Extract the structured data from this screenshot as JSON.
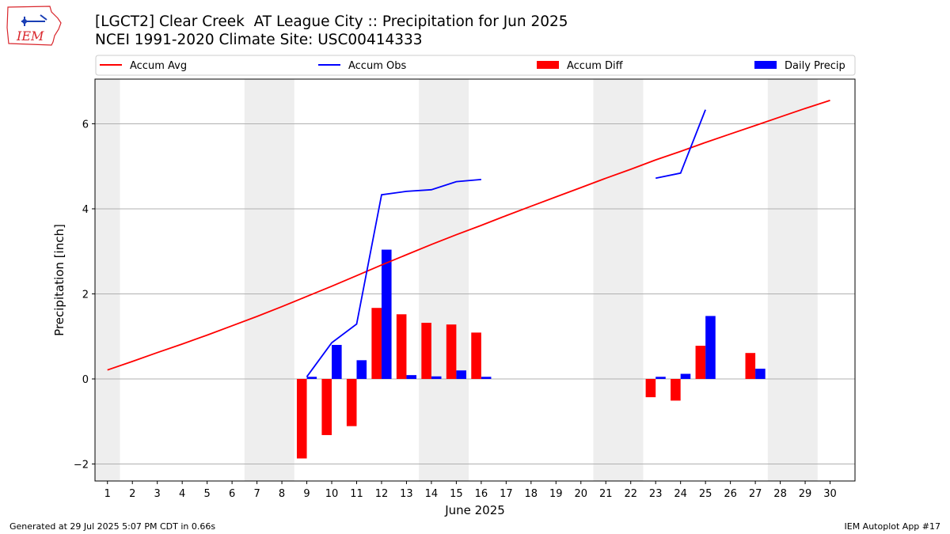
{
  "header": {
    "title": "[LGCT2] Clear Creek  AT League City :: Precipitation for Jun 2025",
    "subtitle": "NCEI 1991-2020 Climate Site: USC00414333"
  },
  "logo": {
    "text": "IEM",
    "color": "#d9262c"
  },
  "footer": {
    "left": "Generated at 29 Jul 2025 5:07 PM CDT in 0.66s",
    "right": "IEM Autoplot App #17"
  },
  "chart_data": {
    "type": "bar",
    "xlabel": "June 2025",
    "ylabel": "Precipitation [inch]",
    "xlim": [
      0.5,
      31
    ],
    "ylim": [
      -2.4,
      7.05
    ],
    "x": [
      1,
      2,
      3,
      4,
      5,
      6,
      7,
      8,
      9,
      10,
      11,
      12,
      13,
      14,
      15,
      16,
      17,
      18,
      19,
      20,
      21,
      22,
      23,
      24,
      25,
      26,
      27,
      28,
      29,
      30
    ],
    "x_tick_labels": [
      "1",
      "2",
      "3",
      "4",
      "5",
      "6",
      "7",
      "8",
      "9",
      "10",
      "11",
      "12",
      "13",
      "14",
      "15",
      "16",
      "17",
      "18",
      "19",
      "20",
      "21",
      "22",
      "23",
      "24",
      "25",
      "26",
      "27",
      "28",
      "29",
      "30"
    ],
    "y_ticks": [
      -2,
      0,
      2,
      4,
      6
    ],
    "y_tick_labels": [
      "−2",
      "0",
      "2",
      "4",
      "6"
    ],
    "grid": "horizontal",
    "legend_placement": "top",
    "weekend_shading": [
      [
        0.5,
        1.5
      ],
      [
        6.5,
        8.5
      ],
      [
        13.5,
        15.5
      ],
      [
        20.5,
        22.5
      ],
      [
        27.5,
        29.5
      ]
    ],
    "shading_color": "#eeeeee",
    "series": [
      {
        "name": "Accum Avg",
        "kind": "line",
        "color": "#ff0000",
        "values": [
          0.21,
          0.41,
          0.62,
          0.82,
          1.03,
          1.25,
          1.47,
          1.7,
          1.94,
          2.18,
          2.43,
          2.68,
          2.92,
          3.16,
          3.39,
          3.61,
          3.84,
          4.06,
          4.28,
          4.5,
          4.72,
          4.93,
          5.15,
          5.35,
          5.56,
          5.76,
          5.96,
          6.16,
          6.36,
          6.55
        ]
      },
      {
        "name": "Accum Obs",
        "kind": "line",
        "color": "#0000ff",
        "values": [
          null,
          null,
          null,
          null,
          null,
          null,
          null,
          null,
          0.05,
          0.85,
          1.29,
          4.33,
          4.41,
          4.45,
          4.64,
          4.69,
          null,
          null,
          null,
          null,
          null,
          null,
          4.72,
          4.84,
          6.33,
          null,
          null,
          null,
          null,
          null
        ]
      },
      {
        "name": "Accum Diff",
        "kind": "bar",
        "color": "#ff0000",
        "values": [
          null,
          null,
          null,
          null,
          null,
          null,
          null,
          null,
          -1.87,
          -1.32,
          -1.11,
          1.67,
          1.52,
          1.32,
          1.28,
          1.09,
          null,
          null,
          null,
          null,
          null,
          null,
          -0.43,
          -0.51,
          0.78,
          null,
          0.61,
          null,
          null,
          null
        ]
      },
      {
        "name": "Daily Precip",
        "kind": "bar",
        "color": "#0000ff",
        "values": [
          null,
          null,
          null,
          null,
          null,
          null,
          null,
          null,
          0.05,
          0.8,
          0.44,
          3.04,
          0.09,
          0.06,
          0.2,
          0.05,
          null,
          null,
          null,
          null,
          null,
          null,
          0.05,
          0.12,
          1.48,
          null,
          0.24,
          null,
          null,
          null
        ]
      }
    ]
  }
}
